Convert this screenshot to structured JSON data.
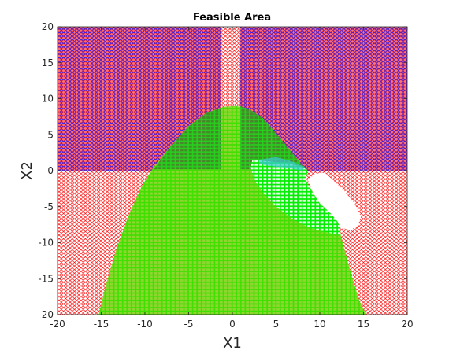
{
  "chart_data": {
    "type": "scatter",
    "title": "Feasible Area",
    "xlabel": "X1",
    "ylabel": "X2",
    "xlim": [
      -20,
      20
    ],
    "ylim": [
      -20,
      20
    ],
    "xticks": [
      -20,
      -15,
      -10,
      -5,
      0,
      5,
      10,
      15,
      20
    ],
    "yticks": [
      -20,
      -15,
      -10,
      -5,
      0,
      5,
      10,
      15,
      20
    ],
    "grid": false,
    "series": [
      {
        "marker": "diamond",
        "color": "#ff0000",
        "region": "full square minus lens-shaped hole",
        "x_range": [
          -20,
          20
        ],
        "y_range": [
          -20,
          20
        ]
      },
      {
        "marker": "circle",
        "color": "#0000ff",
        "region": "upper half, excluding vertical strip near x=0",
        "x_range": [
          -20,
          20
        ],
        "y_range": [
          0,
          20
        ]
      },
      {
        "marker": "square",
        "color": "#00ff00",
        "region": "parabola-shaped region under y = 9 - 0.13*x^2, minus a notch near x in [1,10]",
        "x_range": [
          -15,
          15
        ],
        "y_range": [
          -20,
          9
        ]
      }
    ]
  }
}
